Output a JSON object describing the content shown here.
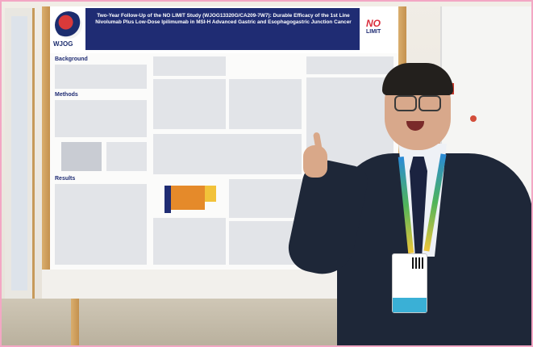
{
  "poster": {
    "title": "Two-Year Follow-Up of the NO LIMIT Study (WJOG13320G/CA209-7W7): Durable Efficacy of the 1st Line Nivolumab Plus Low-Dose Ipilimumab in MSI-H Advanced Gastric and Esophagogastric Junction Cancer",
    "logo_text": "WJOG",
    "brand_name": "NO",
    "brand_sub": "LIMIT",
    "sections": [
      "Background",
      "Methods",
      "Results"
    ]
  },
  "scene": {
    "description_colors": {
      "jacket": "#1e2738",
      "title_bar": "#1f2c73",
      "frame": "#f3a7c4",
      "poster_wood": "#c4914e"
    }
  }
}
